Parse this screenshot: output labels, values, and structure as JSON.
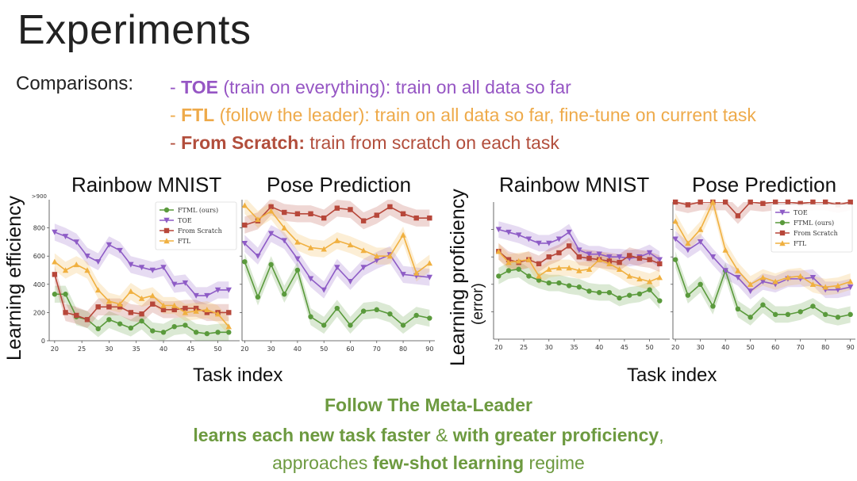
{
  "slide": {
    "title": "Experiments",
    "comparisons_label": "Comparisons:",
    "comparisons": [
      {
        "dash": "- ",
        "bold": "TOE",
        "paren": " (train on everything)",
        "rest": ": train on all data so far",
        "color": "#9656c4"
      },
      {
        "dash": "- ",
        "bold": "FTL",
        "paren": " (follow the leader)",
        "rest": ": train on all data so far, fine-tune on current task",
        "color": "#eeaa4a"
      },
      {
        "dash": "- ",
        "bold": "From Scratch:",
        "paren": "",
        "rest": " train from scratch on each task",
        "color": "#b24e3c"
      }
    ],
    "footer": {
      "line1": "Follow The Meta-Leader",
      "line2_bold1": "learns each new task faster",
      "line2_mid": " & ",
      "line2_bold2": "with greater proficiency",
      "line2_end": ",",
      "line3_pre": "approaches ",
      "line3_bold": "few-shot learning",
      "line3_post": " regime"
    }
  },
  "panels": {
    "left_ylabel": "Learning efficiency",
    "right_ylabel": "Learning proficiency",
    "right_ylabel_sub": "(error)",
    "xlabel": "Task index",
    "titles": [
      "Rainbow MNIST",
      "Pose Prediction",
      "Rainbow MNIST",
      "Pose Prediction"
    ]
  },
  "series_colors": {
    "FTML (ours)": "#5a9a3c",
    "TOE": "#8e5cc6",
    "From Scratch": "#b7473a",
    "FTL": "#f0b040"
  },
  "chart_data": [
    {
      "type": "line",
      "title": "Rainbow MNIST",
      "xlabel": "Task index",
      "ylabel": "Learning efficiency",
      "xlim": [
        19,
        54
      ],
      "ylim": [
        0,
        1000
      ],
      "xticks": [
        20,
        25,
        30,
        35,
        40,
        45,
        50
      ],
      "yticks": [
        0,
        200,
        400,
        600,
        800
      ],
      "ytick_labels": [
        "0",
        "200",
        "400",
        "600",
        "800"
      ],
      "top_label": ">900",
      "legend_position": "top-right",
      "legend": [
        "FTML (ours)",
        "TOE",
        "From Scratch",
        "FTL"
      ],
      "x": [
        20,
        22,
        24,
        26,
        28,
        30,
        32,
        34,
        36,
        38,
        40,
        42,
        44,
        46,
        48,
        50,
        52
      ],
      "series": [
        {
          "name": "FTML (ours)",
          "marker": "circle",
          "values": [
            330,
            330,
            170,
            150,
            85,
            150,
            120,
            90,
            140,
            70,
            60,
            100,
            110,
            60,
            50,
            60,
            60
          ]
        },
        {
          "name": "TOE",
          "marker": "tri-down",
          "values": [
            770,
            740,
            700,
            600,
            560,
            680,
            640,
            540,
            520,
            500,
            520,
            400,
            410,
            320,
            320,
            360,
            360
          ]
        },
        {
          "name": "From Scratch",
          "marker": "square",
          "values": [
            470,
            200,
            180,
            150,
            240,
            240,
            240,
            200,
            190,
            260,
            220,
            220,
            230,
            230,
            200,
            200,
            200
          ]
        },
        {
          "name": "FTL",
          "marker": "tri-up",
          "values": [
            560,
            500,
            540,
            500,
            360,
            280,
            260,
            350,
            300,
            320,
            250,
            250,
            200,
            210,
            220,
            190,
            100
          ]
        }
      ],
      "bands": true
    },
    {
      "type": "line",
      "title": "Pose Prediction",
      "xlabel": "Task index",
      "xlim": [
        19,
        92
      ],
      "ylim": [
        0,
        1000
      ],
      "xticks": [
        20,
        30,
        40,
        50,
        60,
        70,
        80,
        90
      ],
      "x": [
        20,
        25,
        30,
        35,
        40,
        45,
        50,
        55,
        60,
        65,
        70,
        75,
        80,
        85,
        90
      ],
      "series": [
        {
          "name": "FTML (ours)",
          "values": [
            560,
            310,
            540,
            330,
            500,
            170,
            110,
            230,
            110,
            210,
            220,
            190,
            110,
            180,
            160
          ]
        },
        {
          "name": "TOE",
          "values": [
            690,
            600,
            760,
            710,
            580,
            440,
            360,
            520,
            420,
            520,
            570,
            610,
            470,
            460,
            450
          ]
        },
        {
          "name": "From Scratch",
          "values": [
            820,
            850,
            950,
            910,
            900,
            900,
            870,
            940,
            930,
            850,
            890,
            950,
            900,
            870,
            870
          ]
        },
        {
          "name": "FTL",
          "values": [
            960,
            860,
            920,
            800,
            700,
            660,
            650,
            710,
            680,
            640,
            600,
            600,
            750,
            480,
            550
          ]
        }
      ],
      "bands": true
    },
    {
      "type": "line",
      "title": "Rainbow MNIST",
      "xlabel": "Task index",
      "ylabel": "Learning proficiency (error)",
      "xlim": [
        19,
        54
      ],
      "ylim": [
        0,
        10
      ],
      "xticks": [
        20,
        25,
        30,
        35,
        40,
        45,
        50
      ],
      "legend": [],
      "x": [
        20,
        22,
        24,
        26,
        28,
        30,
        32,
        34,
        36,
        38,
        40,
        42,
        44,
        46,
        48,
        50,
        52
      ],
      "series": [
        {
          "name": "FTML (ours)",
          "values": [
            4.6,
            5.0,
            5.1,
            4.6,
            4.3,
            4.1,
            4.1,
            3.9,
            3.8,
            3.5,
            3.4,
            3.4,
            3.0,
            3.2,
            3.3,
            3.6,
            2.8
          ]
        },
        {
          "name": "TOE",
          "values": [
            8.0,
            7.8,
            7.6,
            7.3,
            7.0,
            7.0,
            7.3,
            7.8,
            6.5,
            6.2,
            6.2,
            6.0,
            6.0,
            5.9,
            6.0,
            6.3,
            5.8
          ]
        },
        {
          "name": "From Scratch",
          "values": [
            6.4,
            5.8,
            5.6,
            5.8,
            5.5,
            6.0,
            6.3,
            6.8,
            6.0,
            5.9,
            5.8,
            5.7,
            5.6,
            6.1,
            5.9,
            5.8,
            5.5
          ]
        },
        {
          "name": "FTL",
          "values": [
            6.4,
            5.6,
            5.7,
            5.8,
            4.6,
            5.1,
            5.2,
            5.2,
            5.0,
            5.1,
            5.8,
            5.5,
            5.1,
            4.6,
            4.4,
            4.2,
            4.5
          ]
        }
      ],
      "bands": true
    },
    {
      "type": "line",
      "title": "Pose Prediction",
      "xlabel": "Task index",
      "xlim": [
        19,
        92
      ],
      "ylim": [
        0,
        10
      ],
      "xticks": [
        20,
        30,
        40,
        50,
        60,
        70,
        80,
        90
      ],
      "legend_position": "top-right",
      "legend": [
        "TOE",
        "FTML (ours)",
        "From Scratch",
        "FTL"
      ],
      "x": [
        20,
        25,
        30,
        35,
        40,
        45,
        50,
        55,
        60,
        65,
        70,
        75,
        80,
        85,
        90
      ],
      "series": [
        {
          "name": "FTML (ours)",
          "values": [
            5.8,
            3.2,
            4.0,
            2.4,
            5.0,
            2.2,
            1.6,
            2.5,
            1.8,
            1.8,
            2.0,
            2.4,
            1.8,
            1.6,
            1.8
          ]
        },
        {
          "name": "TOE",
          "values": [
            7.3,
            6.5,
            7.1,
            6.0,
            5.0,
            4.5,
            3.5,
            4.2,
            4.0,
            4.4,
            4.4,
            4.5,
            3.6,
            3.6,
            3.8
          ]
        },
        {
          "name": "From Scratch",
          "values": [
            10.0,
            9.8,
            10.0,
            10.0,
            10.0,
            9.0,
            10.0,
            9.9,
            10.0,
            10.0,
            9.9,
            10.0,
            10.0,
            9.8,
            10.0
          ]
        },
        {
          "name": "FTL",
          "values": [
            8.6,
            7.0,
            8.0,
            10.0,
            6.5,
            5.0,
            4.0,
            4.5,
            4.2,
            4.5,
            4.6,
            4.0,
            3.8,
            3.9,
            4.2
          ]
        }
      ],
      "bands": true
    }
  ]
}
